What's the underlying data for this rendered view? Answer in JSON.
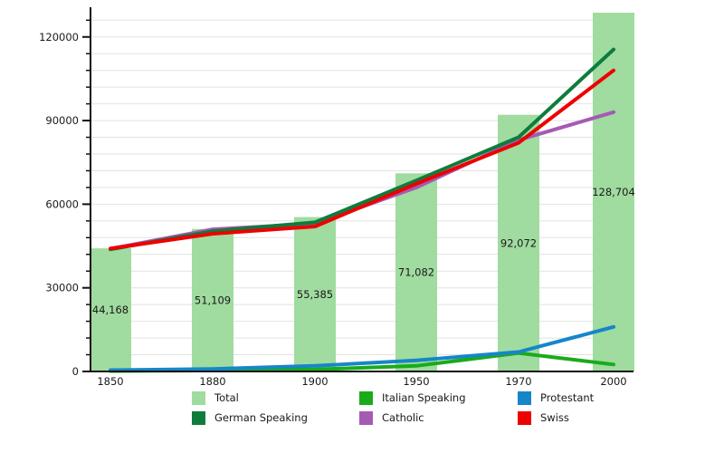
{
  "chart_data": {
    "type": "combo-bar-line",
    "title": "",
    "categories": [
      "1850",
      "1880",
      "1900",
      "1950",
      "1970",
      "2000"
    ],
    "bar_series": {
      "name": "Total",
      "color": "#a0dba0",
      "values": [
        44168,
        51109,
        55385,
        71082,
        92072,
        128704
      ],
      "labels": [
        "44,168",
        "51,109",
        "55,385",
        "71,082",
        "92,072",
        "128,704"
      ]
    },
    "line_series": [
      {
        "name": "Italian Speaking",
        "color": "#1aab1a",
        "values": [
          150,
          350,
          700,
          2000,
          6600,
          2500
        ]
      },
      {
        "name": "Catholic",
        "color": "#a55ab4",
        "values": [
          44000,
          51000,
          53000,
          66000,
          83000,
          93000
        ]
      },
      {
        "name": "German Speaking",
        "color": "#0e7c3c",
        "values": [
          43800,
          50300,
          53500,
          68500,
          84000,
          115500
        ]
      },
      {
        "name": "Protestant",
        "color": "#1786c8",
        "values": [
          500,
          900,
          2000,
          4000,
          7000,
          16000
        ]
      },
      {
        "name": "Swiss",
        "color": "#ee0000",
        "values": [
          44100,
          49400,
          52000,
          67300,
          82000,
          108000
        ]
      }
    ],
    "y_axis": {
      "min": 0,
      "max": 130000,
      "major_ticks": [
        0,
        30000,
        60000,
        90000,
        120000
      ],
      "major_tick_labels": [
        "0",
        "30000",
        "60000",
        "90000",
        "120000"
      ],
      "minor_tick_step": 6000,
      "grid_step": 6000,
      "grid_on": true
    },
    "x_axis": {
      "tick_labels": [
        "1850",
        "1880",
        "1900",
        "1950",
        "1970",
        "2000"
      ]
    },
    "legend": {
      "position": "bottom",
      "columns": [
        [
          {
            "name": "Total",
            "color": "#a0dba0"
          },
          {
            "name": "German Speaking",
            "color": "#0e7c3c"
          }
        ],
        [
          {
            "name": "Italian Speaking",
            "color": "#1aab1a"
          },
          {
            "name": "Catholic",
            "color": "#a55ab4"
          }
        ],
        [
          {
            "name": "Protestant",
            "color": "#1786c8"
          },
          {
            "name": "Swiss",
            "color": "#ee0000"
          }
        ]
      ]
    },
    "style": {
      "axis_color": "#111111",
      "grid_color": "#e2e2e2",
      "text_color": "#1a1a1a",
      "background": "#ffffff"
    }
  }
}
